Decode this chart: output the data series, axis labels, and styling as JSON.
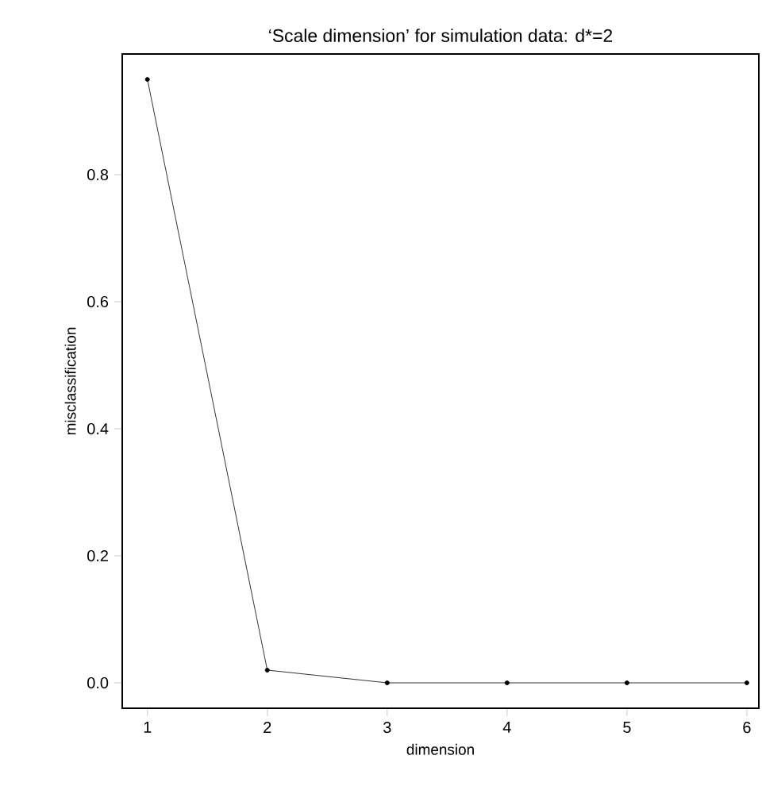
{
  "chart_data": {
    "type": "line",
    "title": "‘Scale dimension’ for simulation data: d*=2",
    "xlabel": "dimension",
    "ylabel": "misclassification",
    "x": [
      1,
      2,
      3,
      4,
      5,
      6
    ],
    "series": [
      {
        "color": "#000000",
        "values": [
          0.95,
          0.02,
          0,
          0,
          0,
          0
        ]
      }
    ],
    "xlim": [
      0.79,
      6.1
    ],
    "ylim": [
      -0.04,
      0.99
    ],
    "xticks": [
      1,
      2,
      3,
      4,
      5,
      6
    ],
    "yticks": [
      {
        "value": 0,
        "label": "0.0"
      },
      {
        "value": 0.2,
        "label": "0.2"
      },
      {
        "value": 0.4,
        "label": "0.4"
      },
      {
        "value": 0.6,
        "label": "0.6"
      },
      {
        "value": 0.8,
        "label": "0.8"
      }
    ],
    "grid": false,
    "marker": "circle",
    "line_style": "solid"
  }
}
